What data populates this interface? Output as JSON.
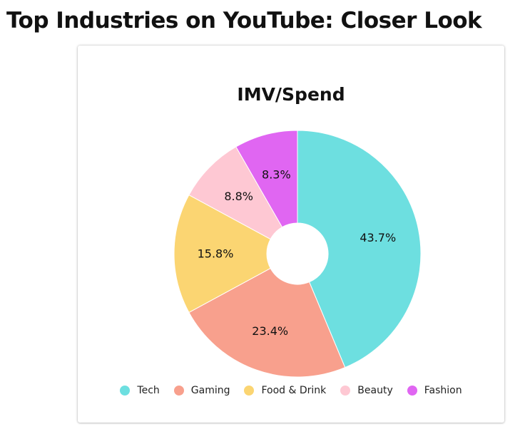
{
  "page": {
    "title": "Top Industries on YouTube: Closer Look"
  },
  "chart_data": {
    "type": "pie",
    "donut": true,
    "title": "IMV/Spend",
    "categories": [
      "Tech",
      "Gaming",
      "Food & Drink",
      "Beauty",
      "Fashion"
    ],
    "values": [
      43.7,
      23.4,
      15.8,
      8.8,
      8.3
    ],
    "value_labels": [
      "43.7%",
      "23.4%",
      "15.8%",
      "8.8%",
      "8.3%"
    ],
    "colors": [
      "#6ddfe0",
      "#f8a08d",
      "#fbd572",
      "#fec8d3",
      "#e066f2"
    ],
    "legend_position": "bottom",
    "start_angle": "top, clockwise"
  }
}
